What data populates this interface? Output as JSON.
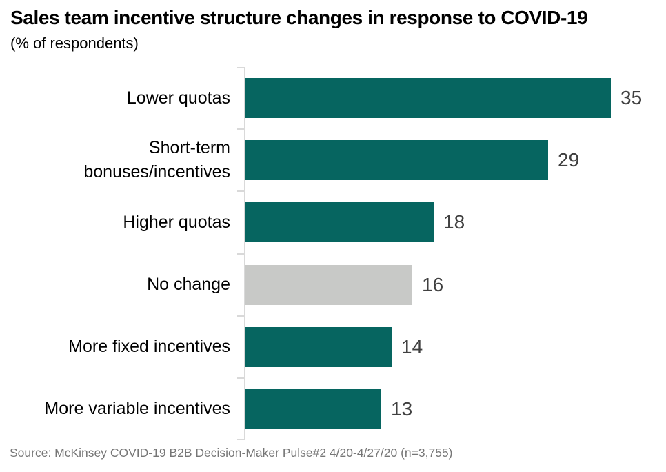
{
  "header": {
    "title": "Sales team incentive structure changes in response to COVID-19",
    "subtitle": "(% of respondents)"
  },
  "footer": {
    "source": "Source: McKinsey COVID-19 B2B Decision-Maker Pulse#2 4/20-4/27/20 (n=3,755)"
  },
  "colors": {
    "bar_teal": "#066560",
    "bar_gray": "#C8C9C7",
    "axis": "#D9D9D9",
    "value_label": "#404040",
    "category_label": "#000000",
    "source_text": "#767676"
  },
  "chart_data": {
    "type": "bar",
    "orientation": "horizontal",
    "title": "Sales team incentive structure changes in response to COVID-19",
    "xlabel": "% of respondents",
    "ylabel": "",
    "xlim": [
      0,
      35
    ],
    "grid": false,
    "legend": "none",
    "value_labels_shown": true,
    "categories": [
      "Lower quotas",
      "Short-term bonuses/incentives",
      "Higher quotas",
      "No change",
      "More fixed incentives",
      "More variable incentives"
    ],
    "values": [
      35,
      29,
      18,
      16,
      14,
      13
    ],
    "bar_colors": [
      "#066560",
      "#066560",
      "#066560",
      "#C8C9C7",
      "#066560",
      "#066560"
    ]
  }
}
